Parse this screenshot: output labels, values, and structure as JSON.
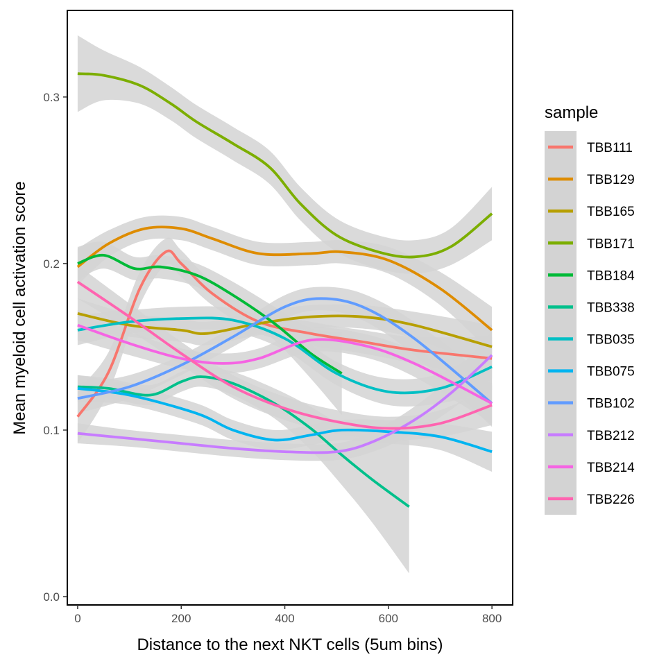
{
  "chart_data": {
    "type": "line",
    "title": "",
    "xlabel": "Distance to the next NKT cells (5um bins)",
    "ylabel": "Mean myeloid cell activation score",
    "xlim": [
      -20,
      840
    ],
    "ylim": [
      -0.005,
      0.352
    ],
    "xticks": [
      0,
      200,
      400,
      600,
      800
    ],
    "xtick_labels": [
      "0",
      "200",
      "400",
      "600",
      "800"
    ],
    "yticks": [
      0.0,
      0.1,
      0.2,
      0.3
    ],
    "ytick_labels": [
      "0.0",
      "0.1",
      "0.2",
      "0.3"
    ],
    "grid": false,
    "legend_title": "sample",
    "legend_position": "right",
    "band_color": "#d3d3d3",
    "series": [
      {
        "name": "TBB111",
        "color": "#F8766D",
        "x": [
          0,
          60,
          120,
          170,
          200,
          260,
          350,
          450,
          550,
          650,
          800
        ],
        "y": [
          0.108,
          0.135,
          0.185,
          0.207,
          0.2,
          0.182,
          0.165,
          0.158,
          0.153,
          0.148,
          0.143
        ],
        "se": [
          0.016,
          0.012,
          0.01,
          0.008,
          0.008,
          0.007,
          0.007,
          0.007,
          0.007,
          0.008,
          0.013
        ]
      },
      {
        "name": "TBB129",
        "color": "#DE8C00",
        "x": [
          0,
          60,
          130,
          200,
          260,
          350,
          450,
          510,
          600,
          700,
          800
        ],
        "y": [
          0.198,
          0.212,
          0.221,
          0.221,
          0.215,
          0.206,
          0.206,
          0.207,
          0.202,
          0.185,
          0.16
        ],
        "se": [
          0.011,
          0.008,
          0.007,
          0.007,
          0.007,
          0.007,
          0.007,
          0.007,
          0.008,
          0.01,
          0.014
        ]
      },
      {
        "name": "TBB165",
        "color": "#B79F00",
        "x": [
          0,
          100,
          200,
          250,
          350,
          450,
          550,
          650,
          800
        ],
        "y": [
          0.17,
          0.163,
          0.16,
          0.158,
          0.164,
          0.168,
          0.168,
          0.163,
          0.15
        ],
        "se": [
          0.009,
          0.007,
          0.007,
          0.007,
          0.007,
          0.007,
          0.007,
          0.008,
          0.013
        ]
      },
      {
        "name": "TBB171",
        "color": "#7CAE00",
        "x": [
          0,
          50,
          120,
          180,
          230,
          300,
          370,
          430,
          500,
          580,
          650,
          720,
          800
        ],
        "y": [
          0.314,
          0.313,
          0.307,
          0.296,
          0.285,
          0.272,
          0.258,
          0.236,
          0.217,
          0.207,
          0.204,
          0.21,
          0.23
        ],
        "se": [
          0.023,
          0.015,
          0.011,
          0.01,
          0.01,
          0.01,
          0.01,
          0.01,
          0.01,
          0.01,
          0.01,
          0.011,
          0.016
        ]
      },
      {
        "name": "TBB184",
        "color": "#00BA38",
        "x": [
          0,
          50,
          110,
          160,
          230,
          300,
          380,
          450,
          510
        ],
        "y": [
          0.2,
          0.205,
          0.197,
          0.198,
          0.193,
          0.181,
          0.164,
          0.146,
          0.134
        ],
        "se": [
          0.01,
          0.008,
          0.007,
          0.007,
          0.007,
          0.008,
          0.01,
          0.015,
          0.025
        ]
      },
      {
        "name": "TBB338",
        "color": "#00C08B",
        "x": [
          0,
          60,
          140,
          200,
          240,
          300,
          380,
          450,
          510,
          570,
          640
        ],
        "y": [
          0.126,
          0.125,
          0.121,
          0.129,
          0.132,
          0.128,
          0.116,
          0.101,
          0.085,
          0.07,
          0.054
        ],
        "se": [
          0.007,
          0.006,
          0.006,
          0.006,
          0.006,
          0.007,
          0.009,
          0.013,
          0.018,
          0.026,
          0.04
        ]
      },
      {
        "name": "TBB035",
        "color": "#00BFC4",
        "x": [
          0,
          100,
          200,
          300,
          400,
          500,
          600,
          700,
          800
        ],
        "y": [
          0.16,
          0.165,
          0.167,
          0.166,
          0.155,
          0.134,
          0.123,
          0.125,
          0.138
        ],
        "se": [
          0.009,
          0.007,
          0.007,
          0.007,
          0.007,
          0.007,
          0.008,
          0.009,
          0.014
        ]
      },
      {
        "name": "TBB075",
        "color": "#00B4F0",
        "x": [
          0,
          100,
          230,
          300,
          380,
          450,
          510,
          600,
          700,
          800
        ],
        "y": [
          0.125,
          0.121,
          0.11,
          0.1,
          0.094,
          0.097,
          0.1,
          0.099,
          0.096,
          0.087
        ],
        "se": [
          0.008,
          0.006,
          0.006,
          0.006,
          0.006,
          0.006,
          0.006,
          0.007,
          0.008,
          0.012
        ]
      },
      {
        "name": "TBB102",
        "color": "#619CFF",
        "x": [
          0,
          100,
          200,
          300,
          400,
          470,
          550,
          650,
          800
        ],
        "y": [
          0.119,
          0.126,
          0.139,
          0.156,
          0.174,
          0.179,
          0.174,
          0.155,
          0.116
        ],
        "se": [
          0.009,
          0.007,
          0.006,
          0.006,
          0.007,
          0.007,
          0.008,
          0.01,
          0.014
        ]
      },
      {
        "name": "TBB212",
        "color": "#C77CFF",
        "x": [
          0,
          100,
          200,
          300,
          400,
          500,
          570,
          650,
          720,
          800
        ],
        "y": [
          0.098,
          0.095,
          0.092,
          0.089,
          0.087,
          0.087,
          0.093,
          0.106,
          0.122,
          0.145
        ],
        "se": [
          0.006,
          0.005,
          0.005,
          0.005,
          0.005,
          0.005,
          0.006,
          0.008,
          0.01,
          0.014
        ]
      },
      {
        "name": "TBB214",
        "color": "#F564E3",
        "x": [
          0,
          100,
          200,
          280,
          350,
          450,
          550,
          650,
          800
        ],
        "y": [
          0.163,
          0.152,
          0.143,
          0.14,
          0.143,
          0.154,
          0.151,
          0.14,
          0.116
        ],
        "se": [
          0.009,
          0.007,
          0.006,
          0.006,
          0.006,
          0.007,
          0.007,
          0.008,
          0.012
        ]
      },
      {
        "name": "TBB226",
        "color": "#FF64B0",
        "x": [
          0,
          100,
          200,
          300,
          400,
          500,
          600,
          700,
          800
        ],
        "y": [
          0.189,
          0.168,
          0.146,
          0.126,
          0.113,
          0.105,
          0.101,
          0.104,
          0.115
        ],
        "se": [
          0.01,
          0.008,
          0.007,
          0.007,
          0.007,
          0.007,
          0.007,
          0.008,
          0.012
        ]
      }
    ]
  }
}
